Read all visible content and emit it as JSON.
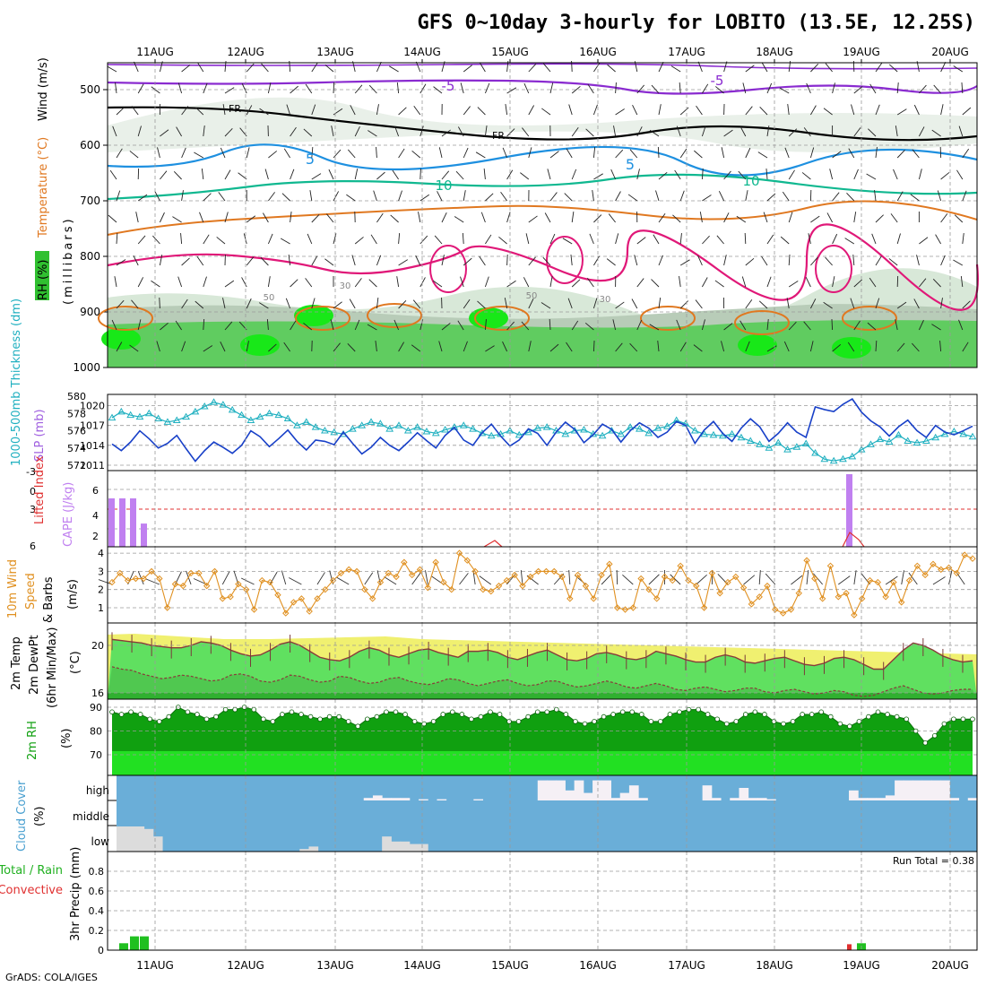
{
  "title": "GFS 0~10day 3-hourly for LOBITO (13.5E, 12.25S)",
  "footer": "GrADS: COLA/IGES",
  "dates": [
    "11AUG",
    "12AUG",
    "13AUG",
    "14AUG",
    "15AUG",
    "16AUG",
    "17AUG",
    "18AUG",
    "19AUG",
    "20AUG"
  ],
  "panels": {
    "upper": {
      "label_wind": "Wind (m/s)",
      "label_temp": "Temperature (°C)",
      "label_rh": "RH (%)",
      "label_unit": "(millibars)",
      "pressure_levels": [
        500,
        600,
        700,
        800,
        900,
        1000
      ],
      "contour_labels": {
        "fr": "FR",
        "minus5": "-5",
        "plus5": "5",
        "ten": "10",
        "rh30": "30",
        "rh50": "50"
      }
    },
    "thickness": {
      "label_thick": "1000-500mb Thickness (dm)",
      "label_slp": "SLP (mb)",
      "left_ticks": [
        572,
        574,
        576,
        578,
        580
      ],
      "right_ticks": [
        1011,
        1014,
        1017,
        1020
      ]
    },
    "cape": {
      "label_li": "Lifted Index",
      "label_cape": "CAPE (J/kg)",
      "left_ticks": [
        "-3",
        "0",
        "3",
        "6"
      ],
      "right_ticks": [
        "6",
        "4",
        "2"
      ]
    },
    "wind10m": {
      "label_1": "10m Wind",
      "label_2": "Speed",
      "label_3": "& Barbs",
      "label_unit": "(m/s)",
      "ticks": [
        1,
        2,
        3,
        4
      ]
    },
    "temp2m": {
      "label_1": "2m Temp",
      "label_2": "2m DewPt",
      "label_3": "(6hr Min/Max)",
      "label_unit": "(°C)",
      "ticks": [
        16,
        20
      ]
    },
    "rh2m": {
      "label": "2m RH",
      "label_unit": "(%)",
      "ticks": [
        70,
        80,
        90
      ]
    },
    "cloud": {
      "label": "Cloud Cover",
      "label_unit": "(%)",
      "layers": [
        "high",
        "middle",
        "low"
      ]
    },
    "precip": {
      "label_1": "Total / Rain",
      "label_2": "Convective",
      "label_3": "3hr Precip (mm)",
      "run_total": "Run Total = 0.38",
      "ticks": [
        "0",
        "0.2",
        "0.4",
        "0.6",
        "0.8"
      ]
    }
  },
  "colors": {
    "temp_minus5": "#8a2bd0",
    "temp_fr": "#000000",
    "temp_5": "#1e90e0",
    "temp_10": "#10b890",
    "temp_15": "#e07820",
    "temp_20": "#e01878",
    "rh_dark": "#60cc60",
    "rh_bright": "#18e818",
    "thickness": "#20b0c0",
    "slp": "#1840c8",
    "cape": "#c080f0",
    "lifted_index": "#e03030",
    "wind_speed": "#e09020",
    "temp_fill": "#60e060",
    "dew_fill": "#50c850",
    "rh2m_fill": "#10a010",
    "cloud_bg": "#6aaed8",
    "cloud_cover": "#f5f0f5",
    "precip_total": "#20c020",
    "precip_conv": "#e03030"
  },
  "chart_data": [
    {
      "type": "area",
      "name": "1000-500mb Thickness",
      "unit": "dm",
      "ylim": [
        572,
        580
      ],
      "values": [
        577.5,
        578.2,
        577.8,
        577.6,
        578.0,
        577.4,
        577.0,
        577.2,
        577.6,
        578.2,
        578.8,
        579.3,
        579.0,
        578.4,
        577.8,
        577.2,
        577.6,
        578.0,
        577.8,
        577.4,
        576.6,
        577.0,
        576.4,
        576.0,
        575.8,
        575.6,
        576.2,
        576.6,
        577.0,
        576.8,
        576.2,
        576.6,
        576.0,
        576.4,
        575.9,
        575.7,
        576.1,
        576.4,
        576.6,
        576.2,
        575.7,
        575.4,
        575.6,
        576.0,
        575.5,
        575.8,
        576.3,
        576.4,
        576.0,
        575.6,
        576.0,
        576.1,
        575.6,
        575.4,
        576.0,
        575.6,
        576.4,
        576.2,
        575.7,
        576.3,
        576.5,
        577.2,
        576.8,
        576.0,
        575.6,
        575.5,
        575.4,
        575.6,
        575.2,
        574.8,
        574.4,
        574.0,
        574.6,
        573.8,
        574.1,
        574.5,
        573.4,
        572.7,
        572.5,
        572.7,
        573.0,
        573.8,
        574.4,
        575.0,
        574.7,
        575.5,
        574.8,
        574.6,
        574.8,
        575.2,
        575.6,
        575.9,
        575.6,
        575.3
      ]
    },
    {
      "type": "line",
      "name": "SLP",
      "unit": "mb",
      "ylim": [
        1011,
        1022
      ],
      "values": [
        1014.2,
        1013.2,
        1014.5,
        1016.2,
        1015.0,
        1013.6,
        1014.3,
        1015.5,
        1013.5,
        1011.6,
        1013.2,
        1014.5,
        1013.7,
        1012.8,
        1014.0,
        1016.2,
        1015.3,
        1013.8,
        1015.0,
        1016.3,
        1014.6,
        1013.3,
        1014.8,
        1014.6,
        1014.1,
        1016.0,
        1014.3,
        1012.7,
        1013.7,
        1015.2,
        1014.0,
        1013.2,
        1014.5,
        1015.9,
        1014.7,
        1013.6,
        1015.5,
        1016.7,
        1014.8,
        1014.0,
        1015.9,
        1017.2,
        1015.4,
        1013.9,
        1014.8,
        1016.5,
        1015.8,
        1014.0,
        1016.0,
        1017.5,
        1016.4,
        1014.4,
        1015.6,
        1017.2,
        1016.4,
        1014.5,
        1016.2,
        1017.4,
        1016.6,
        1015.2,
        1016.0,
        1017.6,
        1017.0,
        1014.3,
        1016.3,
        1017.6,
        1015.8,
        1014.6,
        1016.6,
        1018.0,
        1016.8,
        1014.6,
        1015.8,
        1017.4,
        1016.0,
        1015.2,
        1019.8,
        1019.4,
        1019.1,
        1020.2,
        1021.0,
        1019.0,
        1017.7,
        1016.8,
        1015.4,
        1016.8,
        1017.8,
        1016.2,
        1015.2,
        1017.0,
        1016.0,
        1015.6,
        1016.2,
        1016.9
      ]
    },
    {
      "type": "bar",
      "name": "CAPE",
      "unit": "J/kg",
      "ylim": [
        0,
        8
      ],
      "x": [
        "11AUG 00",
        "11AUG 03",
        "11AUG 06",
        "11AUG 09",
        "18AUG 12"
      ],
      "values": [
        5,
        5,
        5,
        2.4,
        7.5
      ]
    },
    {
      "type": "line",
      "name": "10m Wind Speed",
      "unit": "m/s",
      "ylim": [
        0.5,
        4
      ],
      "values": [
        2.4,
        2.9,
        2.5,
        2.6,
        2.6,
        3.0,
        2.6,
        1.0,
        2.3,
        2.2,
        2.9,
        2.9,
        2.2,
        3.0,
        1.5,
        1.6,
        2.3,
        2.0,
        0.9,
        2.5,
        2.4,
        1.7,
        0.7,
        1.3,
        1.5,
        0.8,
        1.5,
        2.0,
        2.5,
        2.9,
        3.1,
        3.0,
        2.0,
        1.5,
        2.4,
        2.9,
        2.7,
        3.5,
        2.8,
        3.1,
        2.1,
        3.5,
        2.4,
        2.0,
        4.0,
        3.6,
        3.0,
        2.0,
        1.9,
        2.2,
        2.5,
        2.8,
        2.2,
        2.7,
        3.0,
        3.0,
        3.0,
        2.7,
        1.5,
        2.8,
        2.2,
        1.5,
        2.8,
        3.4,
        1.0,
        0.9,
        1.0,
        2.6,
        2.0,
        1.5,
        2.7,
        2.5,
        3.3,
        2.5,
        2.2,
        1.0,
        2.9,
        1.8,
        2.4,
        2.7,
        2.1,
        1.2,
        1.6,
        2.2,
        0.9,
        0.7,
        0.9,
        1.8,
        3.6,
        2.6,
        1.5,
        3.3,
        1.6,
        1.8,
        0.6,
        1.5,
        2.5,
        2.4,
        1.6,
        2.4,
        1.3,
        2.5,
        3.3,
        2.8,
        3.4,
        3.1,
        3.2,
        2.9,
        3.9,
        3.7
      ]
    },
    {
      "type": "area",
      "name": "2m Temp",
      "unit": "°C",
      "ylim": [
        15.5,
        21.5
      ],
      "values": [
        20.5,
        20.4,
        20.3,
        20.2,
        20.0,
        19.9,
        19.8,
        19.8,
        20.0,
        20.3,
        20.2,
        20.0,
        19.6,
        19.3,
        19.1,
        19.2,
        19.6,
        20.1,
        20.3,
        20.0,
        19.5,
        19.0,
        18.8,
        18.7,
        19.0,
        19.5,
        19.8,
        19.6,
        19.2,
        19.0,
        19.3,
        19.6,
        19.7,
        19.4,
        19.2,
        19.0,
        19.5,
        19.5,
        19.6,
        19.4,
        19.0,
        18.8,
        19.1,
        19.4,
        19.6,
        19.2,
        18.8,
        18.7,
        18.9,
        19.3,
        19.4,
        19.2,
        18.9,
        18.8,
        19.0,
        19.5,
        19.3,
        19.1,
        18.8,
        18.6,
        18.6,
        19.0,
        19.2,
        19.0,
        18.6,
        18.5,
        18.7,
        18.9,
        19.0,
        18.7,
        18.4,
        18.3,
        18.5,
        18.9,
        19.0,
        18.8,
        18.4,
        18.0,
        18.0,
        18.8,
        19.6,
        20.2,
        20.0,
        19.6,
        19.1,
        18.8,
        18.6,
        18.7
      ]
    },
    {
      "type": "line",
      "name": "2m DewPt",
      "unit": "°C",
      "ylim": [
        15.5,
        21.5
      ],
      "values": [
        18.2,
        18.0,
        17.9,
        17.6,
        17.4,
        17.2,
        17.3,
        17.5,
        17.4,
        17.2,
        17.0,
        17.1,
        17.5,
        17.6,
        17.4,
        17.0,
        16.9,
        17.1,
        17.5,
        17.4,
        17.1,
        16.9,
        17.0,
        17.4,
        17.3,
        17.0,
        16.8,
        16.9,
        17.2,
        17.3,
        17.0,
        16.8,
        16.7,
        16.9,
        17.2,
        17.1,
        16.8,
        16.6,
        16.8,
        17.0,
        17.1,
        16.8,
        16.6,
        16.7,
        17.0,
        17.0,
        16.7,
        16.5,
        16.6,
        16.8,
        17.0,
        16.8,
        16.5,
        16.4,
        16.6,
        16.8,
        16.6,
        16.3,
        16.2,
        16.4,
        16.5,
        16.3,
        16.1,
        16.2,
        16.4,
        16.4,
        16.1,
        16.0,
        16.2,
        16.3,
        16.1,
        15.9,
        16.0,
        16.2,
        16.1,
        15.8,
        15.7,
        15.8,
        16.1,
        16.4,
        16.6,
        16.3,
        16.0,
        15.9,
        16.0,
        16.2,
        16.3,
        16.3
      ]
    },
    {
      "type": "area",
      "name": "2m RH",
      "unit": "%",
      "ylim": [
        60,
        92
      ],
      "values": [
        88,
        87,
        88,
        87,
        85,
        84,
        86,
        90,
        88,
        87,
        85,
        86,
        89,
        89,
        90,
        89,
        85,
        84,
        87,
        88,
        87,
        86,
        85,
        86,
        86,
        84,
        82,
        85,
        86,
        88,
        88,
        87,
        84,
        83,
        84,
        87,
        88,
        87,
        85,
        86,
        88,
        87,
        84,
        84,
        86,
        88,
        88,
        89,
        87,
        84,
        83,
        84,
        86,
        87,
        88,
        88,
        87,
        84,
        84,
        87,
        88,
        89,
        89,
        87,
        85,
        83,
        84,
        87,
        88,
        87,
        84,
        83,
        84,
        87,
        87,
        88,
        86,
        83,
        82,
        84,
        86,
        88,
        87,
        86,
        85,
        80,
        75,
        78,
        83,
        85,
        85,
        85
      ]
    },
    {
      "type": "bar",
      "name": "Cloud Cover high",
      "unit": "%",
      "values": [
        0,
        0,
        0,
        0,
        0,
        0,
        0,
        0,
        0,
        0,
        0,
        0,
        0,
        0,
        0,
        0,
        0,
        0,
        0,
        0,
        0,
        0,
        0,
        0,
        0,
        0,
        0,
        10,
        20,
        10,
        10,
        10,
        0,
        5,
        0,
        5,
        0,
        0,
        0,
        5,
        0,
        0,
        0,
        0,
        0,
        0,
        80,
        80,
        80,
        40,
        80,
        30,
        80,
        80,
        10,
        30,
        60,
        10,
        0,
        0,
        0,
        0,
        0,
        0,
        60,
        10,
        0,
        10,
        50,
        10,
        10,
        5,
        0,
        0,
        0,
        0,
        0,
        0,
        0,
        0,
        40,
        10,
        10,
        10,
        20,
        80,
        80,
        80,
        80,
        80,
        80,
        10,
        0,
        10
      ]
    },
    {
      "type": "bar",
      "name": "Cloud Cover low",
      "unit": "%",
      "values": [
        100,
        100,
        100,
        90,
        60,
        0,
        0,
        0,
        0,
        0,
        0,
        0,
        0,
        0,
        0,
        0,
        0,
        0,
        0,
        0,
        10,
        20,
        0,
        0,
        0,
        0,
        0,
        0,
        0,
        60,
        40,
        40,
        30,
        30,
        0,
        0,
        0,
        0,
        0,
        0,
        0,
        0,
        0,
        0,
        0,
        0,
        0,
        0,
        0,
        0,
        0,
        0,
        0,
        0,
        0,
        0,
        0,
        0,
        0,
        0,
        0,
        0,
        0,
        0,
        0,
        0,
        0,
        0,
        0,
        0,
        0,
        0,
        0,
        0,
        0,
        0,
        0,
        0,
        0,
        0,
        0,
        0,
        0,
        0,
        0,
        0,
        0,
        0,
        0,
        0,
        0,
        0,
        0,
        0
      ]
    },
    {
      "type": "bar",
      "name": "3hr Precip",
      "unit": "mm",
      "ylim": [
        0,
        1.0
      ],
      "x": [
        "11AUG 00",
        "11AUG 03",
        "11AUG 06",
        "18AUG 12",
        "18AUG 15"
      ],
      "total": [
        0.07,
        0.14,
        0.14,
        0.0,
        0.07
      ],
      "convective": [
        0,
        0,
        0,
        0.06,
        0
      ]
    }
  ]
}
